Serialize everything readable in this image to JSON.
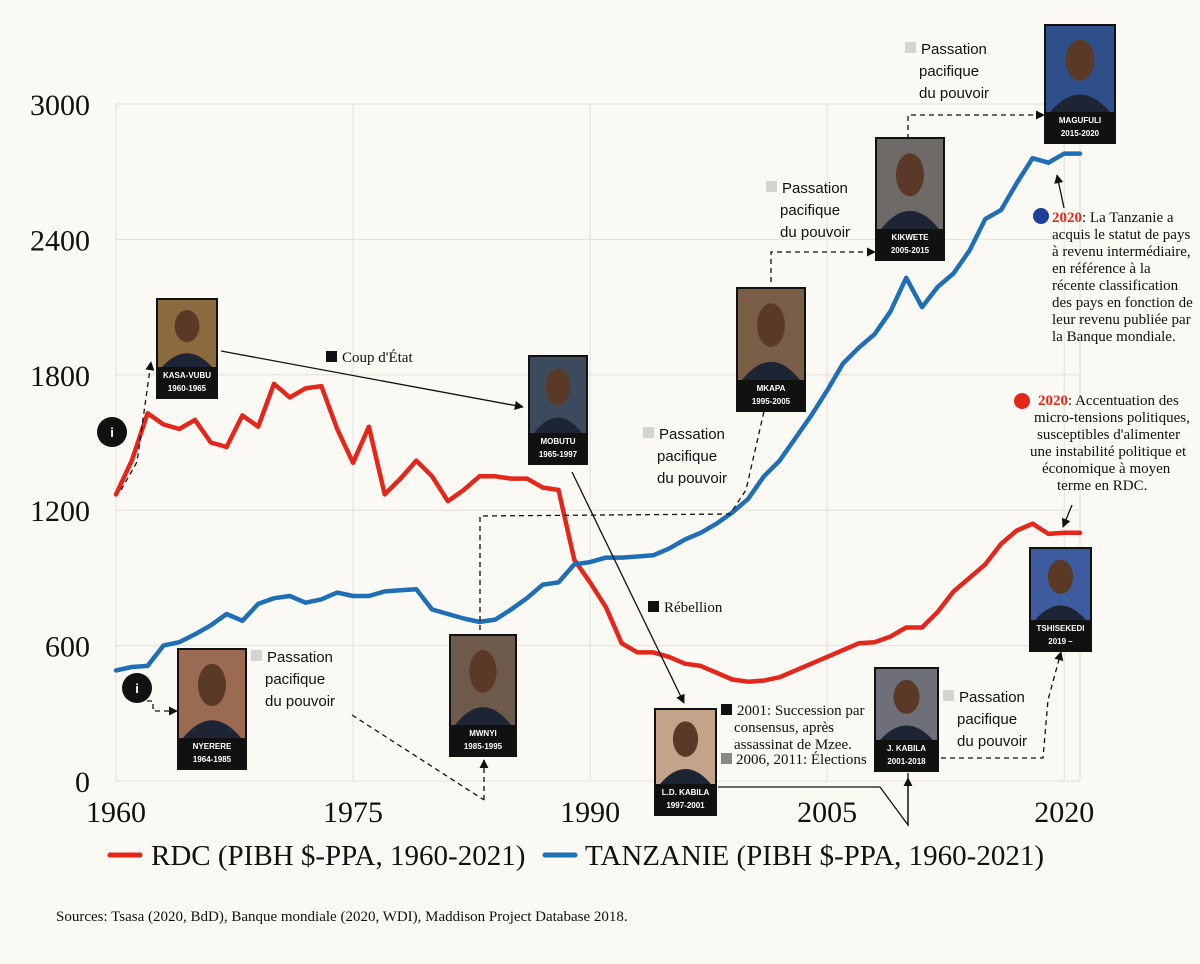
{
  "chart_data": {
    "type": "line",
    "title": "",
    "xlabel": "",
    "ylabel": "",
    "xlim": [
      1960,
      2021
    ],
    "ylim": [
      0,
      3000
    ],
    "x_ticks": [
      "1960",
      "1975",
      "1990",
      "2005",
      "2020"
    ],
    "y_ticks": [
      "0",
      "600",
      "1200",
      "1800",
      "2400",
      "3000"
    ],
    "grid": true,
    "legend_position": "bottom",
    "series": [
      {
        "name": "RDC (PIBH $-PPA, 1960-2021)",
        "color": "#e4261b",
        "x": [
          1960,
          1961,
          1962,
          1963,
          1964,
          1965,
          1966,
          1967,
          1968,
          1969,
          1970,
          1971,
          1972,
          1973,
          1974,
          1975,
          1976,
          1977,
          1978,
          1979,
          1980,
          1981,
          1982,
          1983,
          1984,
          1985,
          1986,
          1987,
          1988,
          1989,
          1990,
          1991,
          1992,
          1993,
          1994,
          1995,
          1996,
          1997,
          1998,
          1999,
          2000,
          2001,
          2002,
          2003,
          2004,
          2005,
          2006,
          2007,
          2008,
          2009,
          2010,
          2011,
          2012,
          2013,
          2014,
          2015,
          2016,
          2017,
          2018,
          2019,
          2020,
          2021
        ],
        "values": [
          1270,
          1420,
          1630,
          1580,
          1560,
          1600,
          1500,
          1480,
          1620,
          1570,
          1760,
          1700,
          1740,
          1750,
          1560,
          1410,
          1570,
          1270,
          1340,
          1420,
          1350,
          1240,
          1290,
          1350,
          1350,
          1340,
          1340,
          1300,
          1290,
          980,
          880,
          770,
          610,
          570,
          570,
          550,
          520,
          510,
          480,
          450,
          440,
          445,
          460,
          490,
          520,
          550,
          580,
          610,
          615,
          640,
          680,
          680,
          750,
          840,
          900,
          960,
          1050,
          1110,
          1140,
          1095,
          1100,
          1100
        ]
      },
      {
        "name": "TANZANIE (PIBH $-PPA, 1960-2021)",
        "color": "#1e6fb5",
        "x": [
          1960,
          1961,
          1962,
          1963,
          1964,
          1965,
          1966,
          1967,
          1968,
          1969,
          1970,
          1971,
          1972,
          1973,
          1974,
          1975,
          1976,
          1977,
          1978,
          1979,
          1980,
          1981,
          1982,
          1983,
          1984,
          1985,
          1986,
          1987,
          1988,
          1989,
          1990,
          1991,
          1992,
          1993,
          1994,
          1995,
          1996,
          1997,
          1998,
          1999,
          2000,
          2001,
          2002,
          2003,
          2004,
          2005,
          2006,
          2007,
          2008,
          2009,
          2010,
          2011,
          2012,
          2013,
          2014,
          2015,
          2016,
          2017,
          2018,
          2019,
          2020,
          2021
        ],
        "values": [
          490,
          505,
          510,
          600,
          615,
          650,
          690,
          740,
          710,
          785,
          810,
          820,
          790,
          805,
          835,
          820,
          820,
          840,
          845,
          850,
          760,
          740,
          720,
          705,
          715,
          760,
          810,
          870,
          880,
          960,
          970,
          990,
          990,
          995,
          1000,
          1030,
          1070,
          1100,
          1140,
          1190,
          1250,
          1350,
          1420,
          1520,
          1620,
          1730,
          1850,
          1920,
          1980,
          2080,
          2230,
          2100,
          2190,
          2250,
          2350,
          2490,
          2530,
          2650,
          2760,
          2740,
          2780,
          2780
        ]
      }
    ],
    "annotations": {
      "coup": "Coup d'État",
      "rebellion": "Rébellion",
      "passation_line1": "Passation",
      "passation_line2": "pacifique",
      "passation_line3": "du pouvoir",
      "succession_lines": [
        "2001: Succession par",
        "consensus, après",
        "assassinat de Mzee."
      ],
      "elections": "2006, 2011: Élections",
      "tz_year": "2020",
      "tz_lines": [
        ": La Tanzanie a",
        "acquis le statut de pays",
        "à revenu intermédiaire,",
        "en référence à la",
        "récente classification",
        "des pays en fonction de",
        "leur revenu publiée par",
        "la Banque mondiale."
      ],
      "rdc_year": "2020",
      "rdc_lines": [
        ": Accentuation des",
        "micro-tensions politiques,",
        "susceptibles d'alimenter",
        "une instabilité politique et",
        "économique à moyen",
        "terme en RDC."
      ],
      "info_marker": "i"
    },
    "leaders": [
      {
        "name": "KASA-VUBU",
        "years": "1960-1965"
      },
      {
        "name": "MOBUTU",
        "years": "1965-1997"
      },
      {
        "name": "NYERERE",
        "years": "1964-1985"
      },
      {
        "name": "MWNYI",
        "years": "1985-1995"
      },
      {
        "name": "MKAPA",
        "years": "1995-2005"
      },
      {
        "name": "KIKWETE",
        "years": "2005-2015"
      },
      {
        "name": "MAGUFULI",
        "years": "2015-2020"
      },
      {
        "name": "L.D. KABILA",
        "years": "1997-2001"
      },
      {
        "name": "J. KABILA",
        "years": "2001-2018"
      },
      {
        "name": "TSHISEKEDI",
        "years": "2019 –"
      }
    ],
    "source": "Sources: Tsasa (2020, BdD), Banque mondiale (2020, WDI), Maddison Project Database 2018."
  }
}
